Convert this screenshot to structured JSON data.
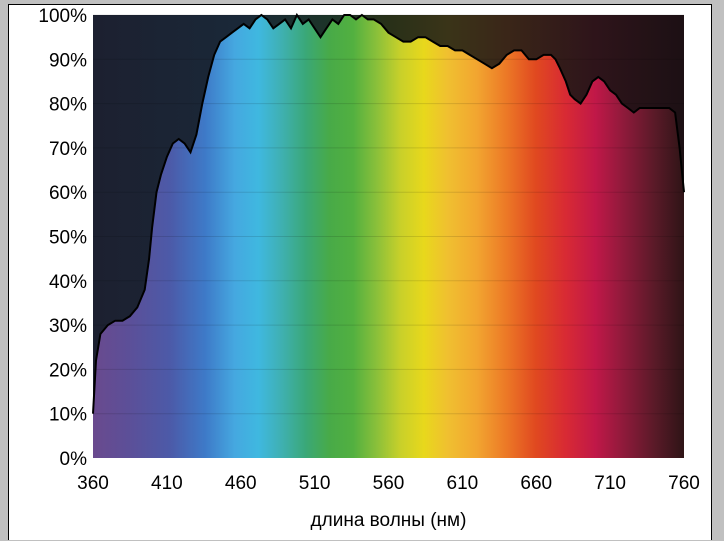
{
  "chart_data": {
    "type": "area",
    "title": "",
    "xlabel": "длина волны (нм)",
    "ylabel": "",
    "xlim": [
      360,
      760
    ],
    "ylim": [
      0,
      100
    ],
    "x_ticks": [
      360,
      410,
      460,
      510,
      560,
      610,
      660,
      710,
      760
    ],
    "y_ticks": [
      0,
      10,
      20,
      30,
      40,
      50,
      60,
      70,
      80,
      90,
      100
    ],
    "y_tick_suffix": "%",
    "grid": true,
    "background": "visible-spectrum gradient",
    "series": [
      {
        "x": [
          360,
          362,
          365,
          370,
          375,
          380,
          385,
          390,
          395,
          398,
          400,
          403,
          406,
          410,
          414,
          418,
          422,
          426,
          430,
          434,
          438,
          442,
          446,
          450,
          454,
          458,
          462,
          466,
          470,
          474,
          478,
          482,
          486,
          490,
          494,
          498,
          502,
          506,
          510,
          514,
          518,
          522,
          526,
          530,
          534,
          538,
          542,
          546,
          550,
          555,
          560,
          565,
          570,
          575,
          580,
          585,
          590,
          595,
          600,
          605,
          610,
          615,
          620,
          625,
          630,
          635,
          640,
          645,
          650,
          655,
          660,
          665,
          670,
          673,
          676,
          680,
          683,
          686,
          690,
          694,
          698,
          702,
          706,
          710,
          714,
          718,
          722,
          726,
          730,
          734,
          738,
          742,
          746,
          750,
          754,
          757,
          760
        ],
        "y": [
          10,
          22,
          28,
          30,
          31,
          31,
          32,
          34,
          38,
          45,
          52,
          60,
          64,
          68,
          71,
          72,
          71,
          69,
          73,
          80,
          86,
          91,
          94,
          95,
          96,
          97,
          98,
          97,
          99,
          100,
          99,
          97,
          98,
          99,
          97,
          100,
          98,
          99,
          97,
          95,
          97,
          99,
          98,
          100,
          100,
          99,
          100,
          99,
          99,
          98,
          96,
          95,
          94,
          94,
          95,
          95,
          94,
          93,
          93,
          92,
          92,
          91,
          90,
          89,
          88,
          89,
          91,
          92,
          92,
          90,
          90,
          91,
          91,
          90,
          88,
          85,
          82,
          81,
          80,
          82,
          85,
          86,
          85,
          83,
          82,
          80,
          79,
          78,
          79,
          79,
          79,
          79,
          79,
          79,
          78,
          70,
          60
        ]
      }
    ]
  }
}
